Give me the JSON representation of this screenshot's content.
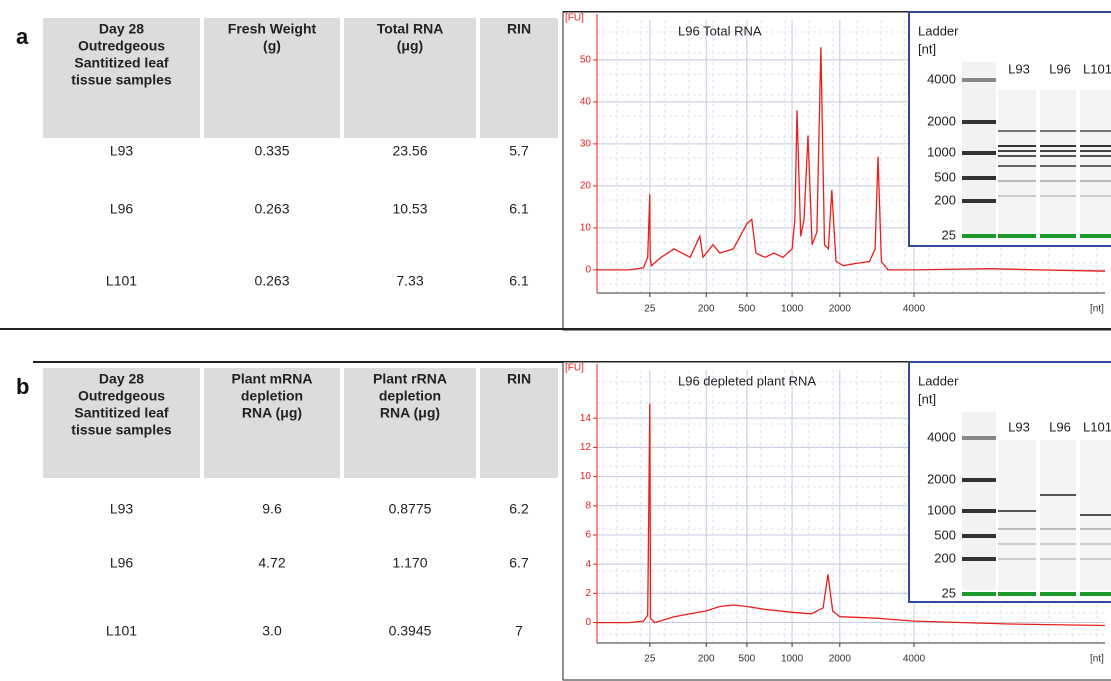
{
  "panels": [
    {
      "label": "a",
      "table": {
        "headers": [
          [
            "Day 28",
            "Outredgeous",
            "Santitized leaf",
            "tissue samples"
          ],
          [
            "Fresh Weight",
            "(g)"
          ],
          [
            "Total RNA",
            "(μg)"
          ],
          [
            "RIN"
          ]
        ],
        "rows": [
          [
            "L93",
            "0.335",
            "23.56",
            "5.7"
          ],
          [
            "L96",
            "0.263",
            "10.53",
            "6.1"
          ],
          [
            "L101",
            "0.263",
            "7.33",
            "6.1"
          ]
        ]
      },
      "chart_data": {
        "type": "line",
        "title": "L96 Total RNA",
        "y_label": "[FU]",
        "x_label": "[nt]",
        "color": "#e8201a",
        "grid": true,
        "xlim": [
          0,
          6000
        ],
        "xticks": [
          25,
          200,
          500,
          1000,
          2000,
          4000
        ],
        "ylim": [
          -5.5,
          59.5
        ],
        "yticks": [
          0,
          10,
          20,
          30,
          40,
          50
        ],
        "x": [
          0,
          15,
          22,
          24,
          25,
          26,
          30,
          60,
          100,
          150,
          180,
          190,
          250,
          300,
          400,
          450,
          500,
          555,
          600,
          700,
          800,
          900,
          1000,
          1060,
          1104,
          1180,
          1250,
          1333,
          1420,
          1520,
          1604,
          1680,
          1760,
          1833,
          1920,
          2100,
          2400,
          2800,
          2950,
          3030,
          3120,
          3300,
          4000,
          4800,
          5300,
          6000
        ],
        "values": [
          0,
          0,
          0.5,
          3,
          18,
          3,
          1,
          3,
          5,
          3,
          8,
          3,
          6,
          4,
          5,
          8,
          11,
          12,
          4,
          3,
          4,
          3,
          5,
          12,
          38,
          8,
          12,
          32,
          6,
          9,
          53,
          6,
          5,
          19,
          2,
          1,
          1.5,
          2,
          5,
          27,
          2,
          0,
          0,
          0.3,
          0,
          -0.3
        ],
        "inset": {
          "title": "Ladder",
          "unit": "[nt]",
          "lanes": [
            "L93",
            "L96",
            "L101"
          ],
          "ladder_labels": [
            4000,
            2000,
            1000,
            500,
            200,
            25
          ]
        }
      }
    },
    {
      "label": "b",
      "table": {
        "headers": [
          [
            "Day 28",
            "Outredgeous",
            "Santitized leaf",
            "tissue samples"
          ],
          [
            "Plant mRNA",
            "depletion",
            "RNA (μg)"
          ],
          [
            "Plant rRNA",
            "depletion",
            "RNA (μg)"
          ],
          [
            "RIN"
          ]
        ],
        "rows": [
          [
            "L93",
            "9.6",
            "0.8775",
            "6.2"
          ],
          [
            "L96",
            "4.72",
            "1.170",
            "6.7"
          ],
          [
            "L101",
            "3.0",
            "0.3945",
            "7"
          ]
        ]
      },
      "chart_data": {
        "type": "line",
        "title": "L96 depleted plant RNA",
        "y_label": "[FU]",
        "x_label": "[nt]",
        "color": "#e8201a",
        "grid": true,
        "xlim": [
          0,
          6000
        ],
        "xticks": [
          25,
          200,
          500,
          1000,
          2000,
          4000
        ],
        "ylim": [
          -1.4,
          17.3
        ],
        "yticks": [
          0,
          2,
          4,
          6,
          8,
          10,
          12,
          14
        ],
        "x": [
          0,
          15,
          22,
          24,
          25,
          26,
          27,
          40,
          100,
          200,
          300,
          400,
          500,
          700,
          1000,
          1400,
          1650,
          1750,
          1850,
          2000,
          3000,
          4000,
          5000,
          6000
        ],
        "values": [
          0,
          0,
          0.1,
          0.5,
          15,
          8,
          0.3,
          0,
          0.4,
          0.8,
          1.1,
          1.2,
          1.1,
          0.9,
          0.7,
          0.6,
          1,
          3.3,
          0.8,
          0.4,
          0.3,
          0.1,
          -0.1,
          -0.2
        ],
        "inset": {
          "title": "Ladder",
          "unit": "[nt]",
          "lanes": [
            "L93",
            "L96",
            "L101"
          ],
          "ladder_labels": [
            4000,
            2000,
            1000,
            500,
            200,
            25
          ]
        }
      }
    }
  ]
}
